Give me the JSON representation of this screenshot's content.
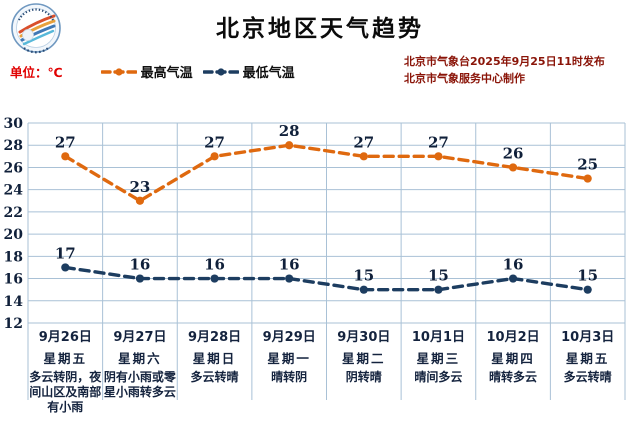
{
  "header": {
    "title": "北京地区天气趋势",
    "issued_line1": "北京市气象台2025年9月25日11时发布",
    "issued_line2": "北京市气象服务中心制作",
    "logo_name": "beijing-meteorological-service-logo"
  },
  "legend": {
    "unit_label": "单位：℃"
  },
  "colors": {
    "max_line": "#df690f",
    "min_line": "#1d3d60",
    "unit_text": "#e00000",
    "issued_text": "#8a1408",
    "grid": "#a9c1d6",
    "value_label": "#10203a",
    "axis_label": "#10203a",
    "bottom_text": "#14233e"
  },
  "chart_data": {
    "type": "line",
    "title": "北京地区天气趋势",
    "categories": [
      "9月26日",
      "9月27日",
      "9月28日",
      "9月29日",
      "9月30日",
      "10月1日",
      "10月2日",
      "10月3日"
    ],
    "weekdays": [
      "星期五",
      "星期六",
      "星期日",
      "星期一",
      "星期二",
      "星期三",
      "星期四",
      "星期五"
    ],
    "weather": [
      "多云转阴，夜间山区及南部有小雨",
      "阴有小雨或零星小雨转多云",
      "多云转晴",
      "晴转阴",
      "阴转晴",
      "晴间多云",
      "晴转多云",
      "多云转晴"
    ],
    "series": [
      {
        "name": "最高气温",
        "values": [
          27,
          23,
          27,
          28,
          27,
          27,
          26,
          25
        ],
        "color": "#df690f"
      },
      {
        "name": "最低气温",
        "values": [
          17,
          16,
          16,
          16,
          15,
          15,
          16,
          15
        ],
        "color": "#1d3d60"
      }
    ],
    "ylabel": "℃",
    "ylim": [
      12,
      30
    ],
    "ytick_step": 2,
    "yticks": [
      12,
      14,
      16,
      18,
      20,
      22,
      24,
      26,
      28,
      30
    ],
    "grid": true,
    "legend_position": "top",
    "line_style": "dashed"
  }
}
